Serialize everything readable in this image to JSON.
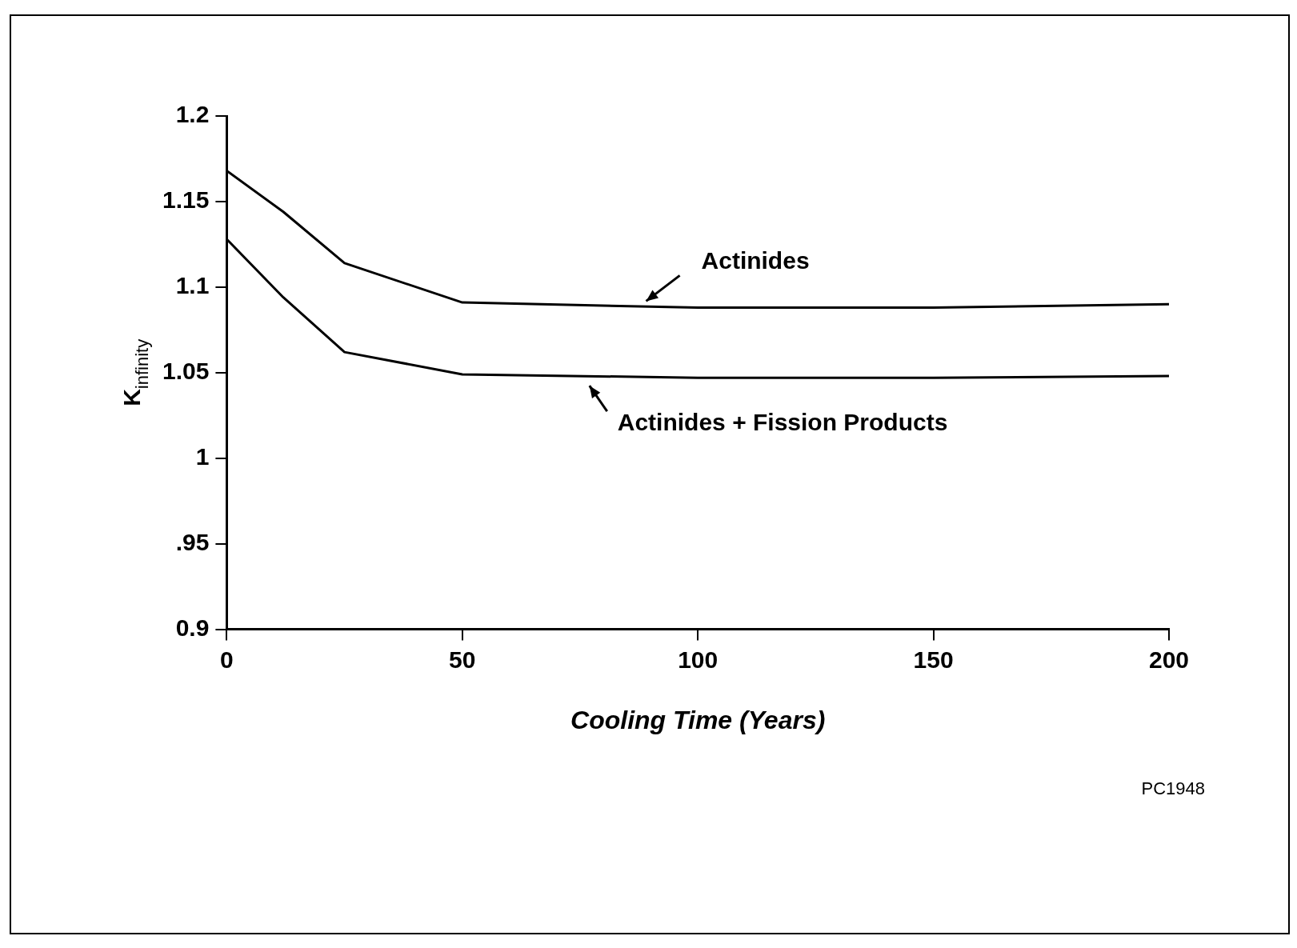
{
  "chart_data": {
    "type": "line",
    "xlabel": "Cooling Time (Years)",
    "ylabel": "K$_{infinity}$",
    "xlim": [
      0,
      200
    ],
    "xticks": [
      0,
      50,
      100,
      150,
      200
    ],
    "ylim": [
      0.9,
      1.2
    ],
    "yticks": [
      {
        "value": 0.9,
        "label": "0.9"
      },
      {
        "value": 0.95,
        "label": ".95"
      },
      1,
      1.05,
      1.1,
      1.15,
      1.2
    ],
    "grid": false,
    "legend": false,
    "marker": "none",
    "line_style": "solid",
    "series": [
      {
        "color": "#000000",
        "x": [
          0,
          12,
          25,
          50,
          100,
          150,
          200
        ],
        "values": [
          1.168,
          1.144,
          1.114,
          1.091,
          1.088,
          1.088,
          1.09
        ]
      },
      {
        "color": "#000000",
        "x": [
          0,
          12,
          25,
          50,
          100,
          150,
          200
        ],
        "values": [
          1.128,
          1.094,
          1.062,
          1.049,
          1.047,
          1.047,
          1.048
        ]
      }
    ],
    "annotations": [
      {
        "text": "Actinides",
        "x": 88,
        "y": 1.089
      },
      {
        "text": "Actinides + Fission Products",
        "x": 77,
        "y": 1.047
      },
      "PC1948"
    ]
  }
}
